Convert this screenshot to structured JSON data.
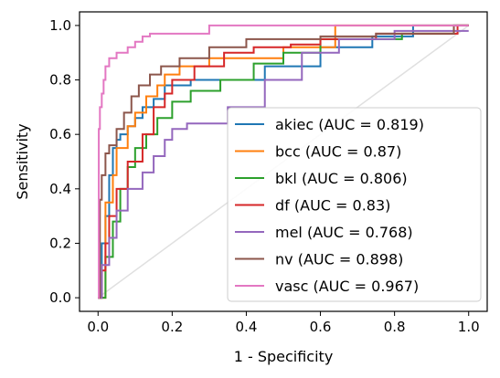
{
  "chart_data": {
    "type": "line",
    "xlabel": "1 - Specificity",
    "ylabel": "Sensitivity",
    "xlim": [
      -0.05,
      1.05
    ],
    "ylim": [
      -0.05,
      1.05
    ],
    "xticks": [
      "0.0",
      "0.2",
      "0.4",
      "0.6",
      "0.8",
      "1.0"
    ],
    "yticks": [
      "0.0",
      "0.2",
      "0.4",
      "0.6",
      "0.8",
      "1.0"
    ],
    "grid": false,
    "legend_position": "bottom-right",
    "diagonal": {
      "x": [
        0,
        1
      ],
      "y": [
        0,
        1
      ],
      "color": "#e0e0e0"
    },
    "series": [
      {
        "name": "akiec (AUC = 0.819)",
        "color": "#1f77b4",
        "x": [
          0,
          0.01,
          0.01,
          0.02,
          0.02,
          0.03,
          0.03,
          0.04,
          0.04,
          0.05,
          0.05,
          0.06,
          0.06,
          0.08,
          0.08,
          0.1,
          0.1,
          0.12,
          0.12,
          0.15,
          0.15,
          0.18,
          0.18,
          0.25,
          0.25,
          0.45,
          0.45,
          0.6,
          0.6,
          0.74,
          0.74,
          0.85,
          0.85,
          1.0
        ],
        "y": [
          0,
          0,
          0.2,
          0.2,
          0.3,
          0.3,
          0.45,
          0.45,
          0.55,
          0.55,
          0.58,
          0.58,
          0.6,
          0.6,
          0.63,
          0.63,
          0.66,
          0.66,
          0.7,
          0.7,
          0.73,
          0.73,
          0.78,
          0.78,
          0.8,
          0.8,
          0.85,
          0.85,
          0.92,
          0.92,
          0.96,
          0.96,
          1.0,
          1.0
        ]
      },
      {
        "name": "bcc (AUC = 0.87)",
        "color": "#ff7f0e",
        "x": [
          0,
          0.02,
          0.02,
          0.04,
          0.04,
          0.05,
          0.05,
          0.08,
          0.08,
          0.1,
          0.1,
          0.13,
          0.13,
          0.16,
          0.16,
          0.18,
          0.18,
          0.22,
          0.22,
          0.3,
          0.3,
          0.5,
          0.5,
          0.64,
          0.64,
          1.0
        ],
        "y": [
          0,
          0,
          0.35,
          0.35,
          0.45,
          0.45,
          0.55,
          0.55,
          0.63,
          0.63,
          0.68,
          0.68,
          0.74,
          0.74,
          0.78,
          0.78,
          0.82,
          0.82,
          0.85,
          0.85,
          0.88,
          0.88,
          0.92,
          0.92,
          1.0,
          1.0
        ]
      },
      {
        "name": "bkl (AUC = 0.806)",
        "color": "#2ca02c",
        "x": [
          0,
          0.02,
          0.02,
          0.04,
          0.04,
          0.06,
          0.06,
          0.08,
          0.08,
          0.1,
          0.1,
          0.13,
          0.13,
          0.16,
          0.16,
          0.2,
          0.2,
          0.25,
          0.25,
          0.33,
          0.33,
          0.42,
          0.42,
          0.5,
          0.5,
          0.6,
          0.6,
          0.82,
          0.82,
          0.96,
          0.96,
          1.0
        ],
        "y": [
          0,
          0,
          0.15,
          0.15,
          0.28,
          0.28,
          0.4,
          0.4,
          0.48,
          0.48,
          0.55,
          0.55,
          0.6,
          0.6,
          0.66,
          0.66,
          0.72,
          0.72,
          0.76,
          0.76,
          0.8,
          0.8,
          0.86,
          0.86,
          0.9,
          0.9,
          0.95,
          0.95,
          0.97,
          0.97,
          1.0,
          1.0
        ]
      },
      {
        "name": "df (AUC = 0.83)",
        "color": "#d62728",
        "x": [
          0,
          0.01,
          0.01,
          0.02,
          0.02,
          0.03,
          0.03,
          0.05,
          0.05,
          0.08,
          0.08,
          0.12,
          0.12,
          0.15,
          0.15,
          0.18,
          0.18,
          0.2,
          0.2,
          0.26,
          0.26,
          0.34,
          0.34,
          0.42,
          0.42,
          0.52,
          0.52,
          0.6,
          0.6,
          0.75,
          0.75,
          0.97,
          0.97,
          1.0
        ],
        "y": [
          0,
          0,
          0.1,
          0.1,
          0.2,
          0.2,
          0.3,
          0.3,
          0.4,
          0.4,
          0.5,
          0.5,
          0.6,
          0.6,
          0.7,
          0.7,
          0.75,
          0.75,
          0.8,
          0.8,
          0.85,
          0.85,
          0.9,
          0.9,
          0.92,
          0.92,
          0.93,
          0.93,
          0.95,
          0.95,
          0.97,
          0.97,
          1.0,
          1.0
        ]
      },
      {
        "name": "mel (AUC = 0.768)",
        "color": "#9467bd",
        "x": [
          0,
          0.01,
          0.01,
          0.03,
          0.03,
          0.05,
          0.05,
          0.08,
          0.08,
          0.12,
          0.12,
          0.15,
          0.15,
          0.18,
          0.18,
          0.2,
          0.2,
          0.24,
          0.24,
          0.35,
          0.35,
          0.45,
          0.45,
          0.55,
          0.55,
          0.65,
          0.65,
          0.8,
          0.8,
          1.0
        ],
        "y": [
          0,
          0,
          0.12,
          0.12,
          0.22,
          0.22,
          0.32,
          0.32,
          0.4,
          0.4,
          0.46,
          0.46,
          0.52,
          0.52,
          0.58,
          0.58,
          0.62,
          0.62,
          0.64,
          0.64,
          0.7,
          0.7,
          0.8,
          0.8,
          0.9,
          0.9,
          0.95,
          0.95,
          0.98,
          0.98
        ]
      },
      {
        "name": "nv (AUC = 0.898)",
        "color": "#8c564b",
        "x": [
          0,
          0.005,
          0.005,
          0.01,
          0.01,
          0.02,
          0.02,
          0.03,
          0.03,
          0.05,
          0.05,
          0.07,
          0.07,
          0.09,
          0.09,
          0.11,
          0.11,
          0.14,
          0.14,
          0.17,
          0.17,
          0.22,
          0.22,
          0.3,
          0.3,
          0.4,
          0.4,
          0.6,
          0.6,
          0.75,
          0.75,
          0.96,
          0.96,
          1.0
        ],
        "y": [
          0,
          0,
          0.36,
          0.36,
          0.45,
          0.45,
          0.53,
          0.53,
          0.56,
          0.56,
          0.62,
          0.62,
          0.68,
          0.68,
          0.74,
          0.74,
          0.78,
          0.78,
          0.82,
          0.82,
          0.85,
          0.85,
          0.88,
          0.88,
          0.92,
          0.92,
          0.95,
          0.95,
          0.96,
          0.96,
          0.97,
          0.97,
          1.0,
          1.0
        ]
      },
      {
        "name": "vasc (AUC = 0.967)",
        "color": "#e377c2",
        "x": [
          0,
          0.002,
          0.002,
          0.005,
          0.005,
          0.01,
          0.01,
          0.015,
          0.015,
          0.02,
          0.02,
          0.03,
          0.03,
          0.05,
          0.05,
          0.08,
          0.08,
          0.1,
          0.1,
          0.12,
          0.12,
          0.14,
          0.14,
          0.3,
          0.3,
          1.0
        ],
        "y": [
          0,
          0,
          0.62,
          0.62,
          0.7,
          0.7,
          0.75,
          0.75,
          0.8,
          0.8,
          0.85,
          0.85,
          0.88,
          0.88,
          0.9,
          0.9,
          0.92,
          0.92,
          0.94,
          0.94,
          0.96,
          0.96,
          0.97,
          0.97,
          1.0,
          1.0
        ]
      }
    ]
  }
}
